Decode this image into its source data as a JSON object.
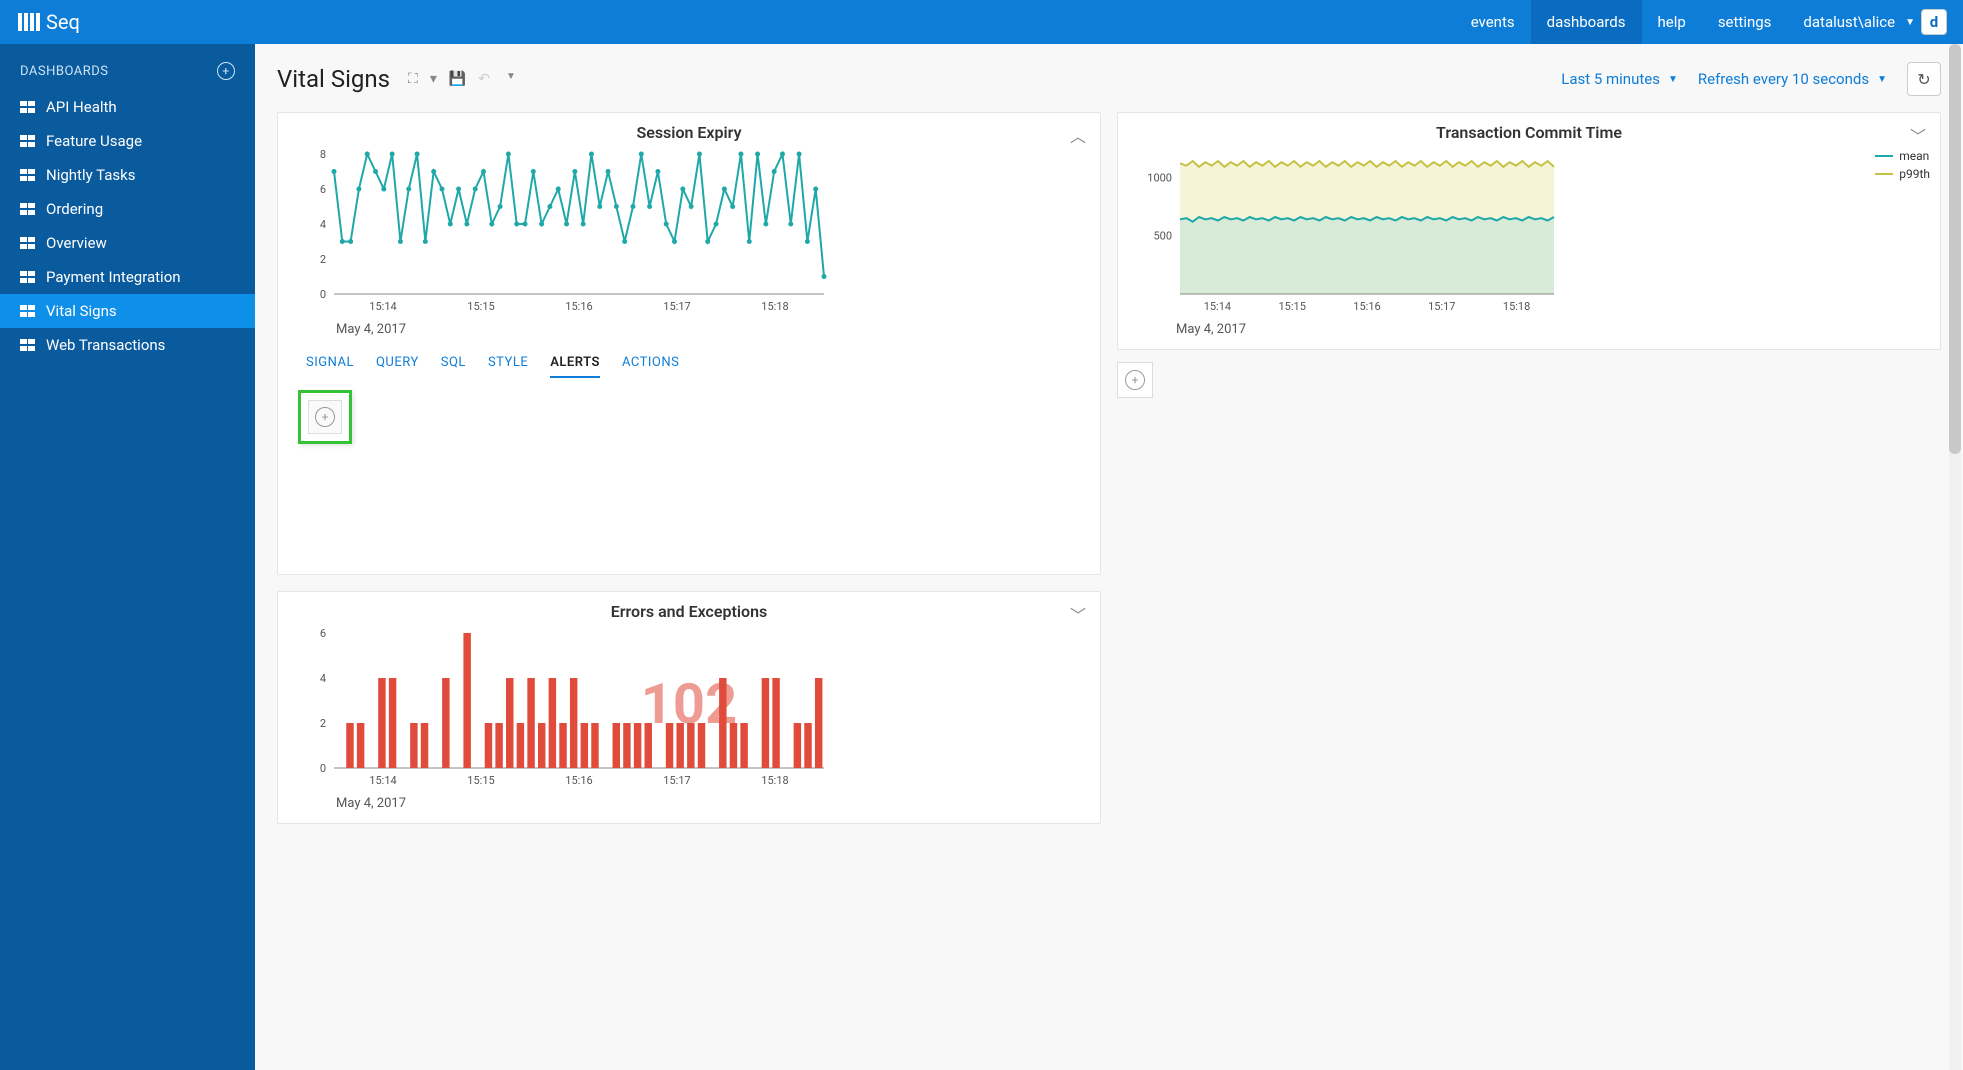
{
  "brand": "Seq",
  "topnav": {
    "events": "events",
    "dashboards": "dashboards",
    "help": "help",
    "settings": "settings",
    "user": "datalust\\alice"
  },
  "sidebar": {
    "header": "DASHBOARDS",
    "items": [
      {
        "label": "API Health"
      },
      {
        "label": "Feature Usage"
      },
      {
        "label": "Nightly Tasks"
      },
      {
        "label": "Ordering"
      },
      {
        "label": "Overview"
      },
      {
        "label": "Payment Integration"
      },
      {
        "label": "Vital Signs",
        "active": true
      },
      {
        "label": "Web Transactions"
      }
    ]
  },
  "page": {
    "title": "Vital Signs",
    "time_range": "Last 5 minutes",
    "refresh": "Refresh every 10 seconds"
  },
  "session_chart": {
    "title": "Session Expiry",
    "type": "line",
    "color": "#1fa8a8",
    "marker_color": "#1fa8a8",
    "background": "#ffffff",
    "ylim": [
      0,
      8
    ],
    "ytick_step": 2,
    "x_labels": [
      "15:14",
      "15:15",
      "15:16",
      "15:17",
      "15:18"
    ],
    "date_label": "May 4, 2017",
    "values": [
      7,
      3,
      3,
      6,
      8,
      7,
      6,
      8,
      3,
      6,
      8,
      3,
      7,
      6,
      4,
      6,
      4,
      6,
      7,
      4,
      5,
      8,
      4,
      4,
      7,
      4,
      5,
      6,
      4,
      7,
      4,
      8,
      5,
      7,
      5,
      3,
      5,
      8,
      5,
      7,
      4,
      3,
      6,
      5,
      8,
      3,
      4,
      6,
      5,
      8,
      3,
      8,
      4,
      7,
      8,
      4,
      8,
      3,
      6,
      1
    ]
  },
  "transaction_chart": {
    "title": "Transaction Commit Time",
    "type": "line",
    "background": "#ffffff",
    "area_color": "#d8ead8",
    "area_color2": "#f5f4d8",
    "ylim": [
      0,
      1200
    ],
    "yticks": [
      500,
      1000
    ],
    "x_labels": [
      "15:14",
      "15:15",
      "15:16",
      "15:17",
      "15:18"
    ],
    "date_label": "May 4, 2017",
    "series": [
      {
        "name": "mean",
        "color": "#1fa8a8",
        "values": [
          640,
          650,
          620,
          660,
          640,
          650,
          630,
          660,
          640,
          650,
          630,
          660,
          640,
          650,
          630,
          660,
          640,
          650,
          630,
          660,
          640,
          650,
          630,
          660,
          640,
          650,
          630,
          660,
          640,
          650,
          630,
          660,
          640,
          650,
          630,
          660,
          640,
          650,
          630,
          660,
          640,
          650,
          630,
          660,
          640,
          650,
          630,
          660,
          640,
          650,
          630,
          660,
          640,
          650,
          630,
          660,
          640,
          650,
          630,
          660
        ]
      },
      {
        "name": "p99th",
        "color": "#c5c242",
        "values": [
          1120,
          1100,
          1140,
          1090,
          1130,
          1100,
          1140,
          1090,
          1130,
          1100,
          1140,
          1090,
          1130,
          1100,
          1140,
          1090,
          1130,
          1100,
          1140,
          1090,
          1130,
          1100,
          1140,
          1090,
          1130,
          1100,
          1140,
          1090,
          1130,
          1100,
          1140,
          1090,
          1130,
          1100,
          1140,
          1090,
          1130,
          1100,
          1140,
          1090,
          1130,
          1100,
          1140,
          1090,
          1130,
          1100,
          1140,
          1090,
          1130,
          1100,
          1140,
          1090,
          1130,
          1100,
          1140,
          1090,
          1130,
          1100,
          1140,
          1090
        ]
      }
    ],
    "legend": [
      {
        "label": "mean",
        "color": "#1fa8a8"
      },
      {
        "label": "p99th",
        "color": "#c5c242"
      }
    ]
  },
  "errors_chart": {
    "title": "Errors and Exceptions",
    "type": "bar",
    "color": "#e04b3b",
    "background": "#ffffff",
    "ylim": [
      0,
      6
    ],
    "ytick_step": 2,
    "x_labels": [
      "15:14",
      "15:15",
      "15:16",
      "15:17",
      "15:18"
    ],
    "date_label": "May 4, 2017",
    "big_number": "102",
    "values": [
      0,
      2,
      2,
      0,
      4,
      4,
      0,
      2,
      2,
      0,
      4,
      0,
      6,
      0,
      2,
      2,
      4,
      2,
      4,
      2,
      4,
      2,
      4,
      2,
      2,
      0,
      2,
      2,
      2,
      2,
      0,
      2,
      2,
      2,
      2,
      0,
      4,
      2,
      2,
      0,
      4,
      4,
      0,
      2,
      2,
      4
    ]
  },
  "tabs": [
    "SIGNAL",
    "QUERY",
    "SQL",
    "STYLE",
    "ALERTS",
    "ACTIONS"
  ],
  "active_tab": "ALERTS"
}
